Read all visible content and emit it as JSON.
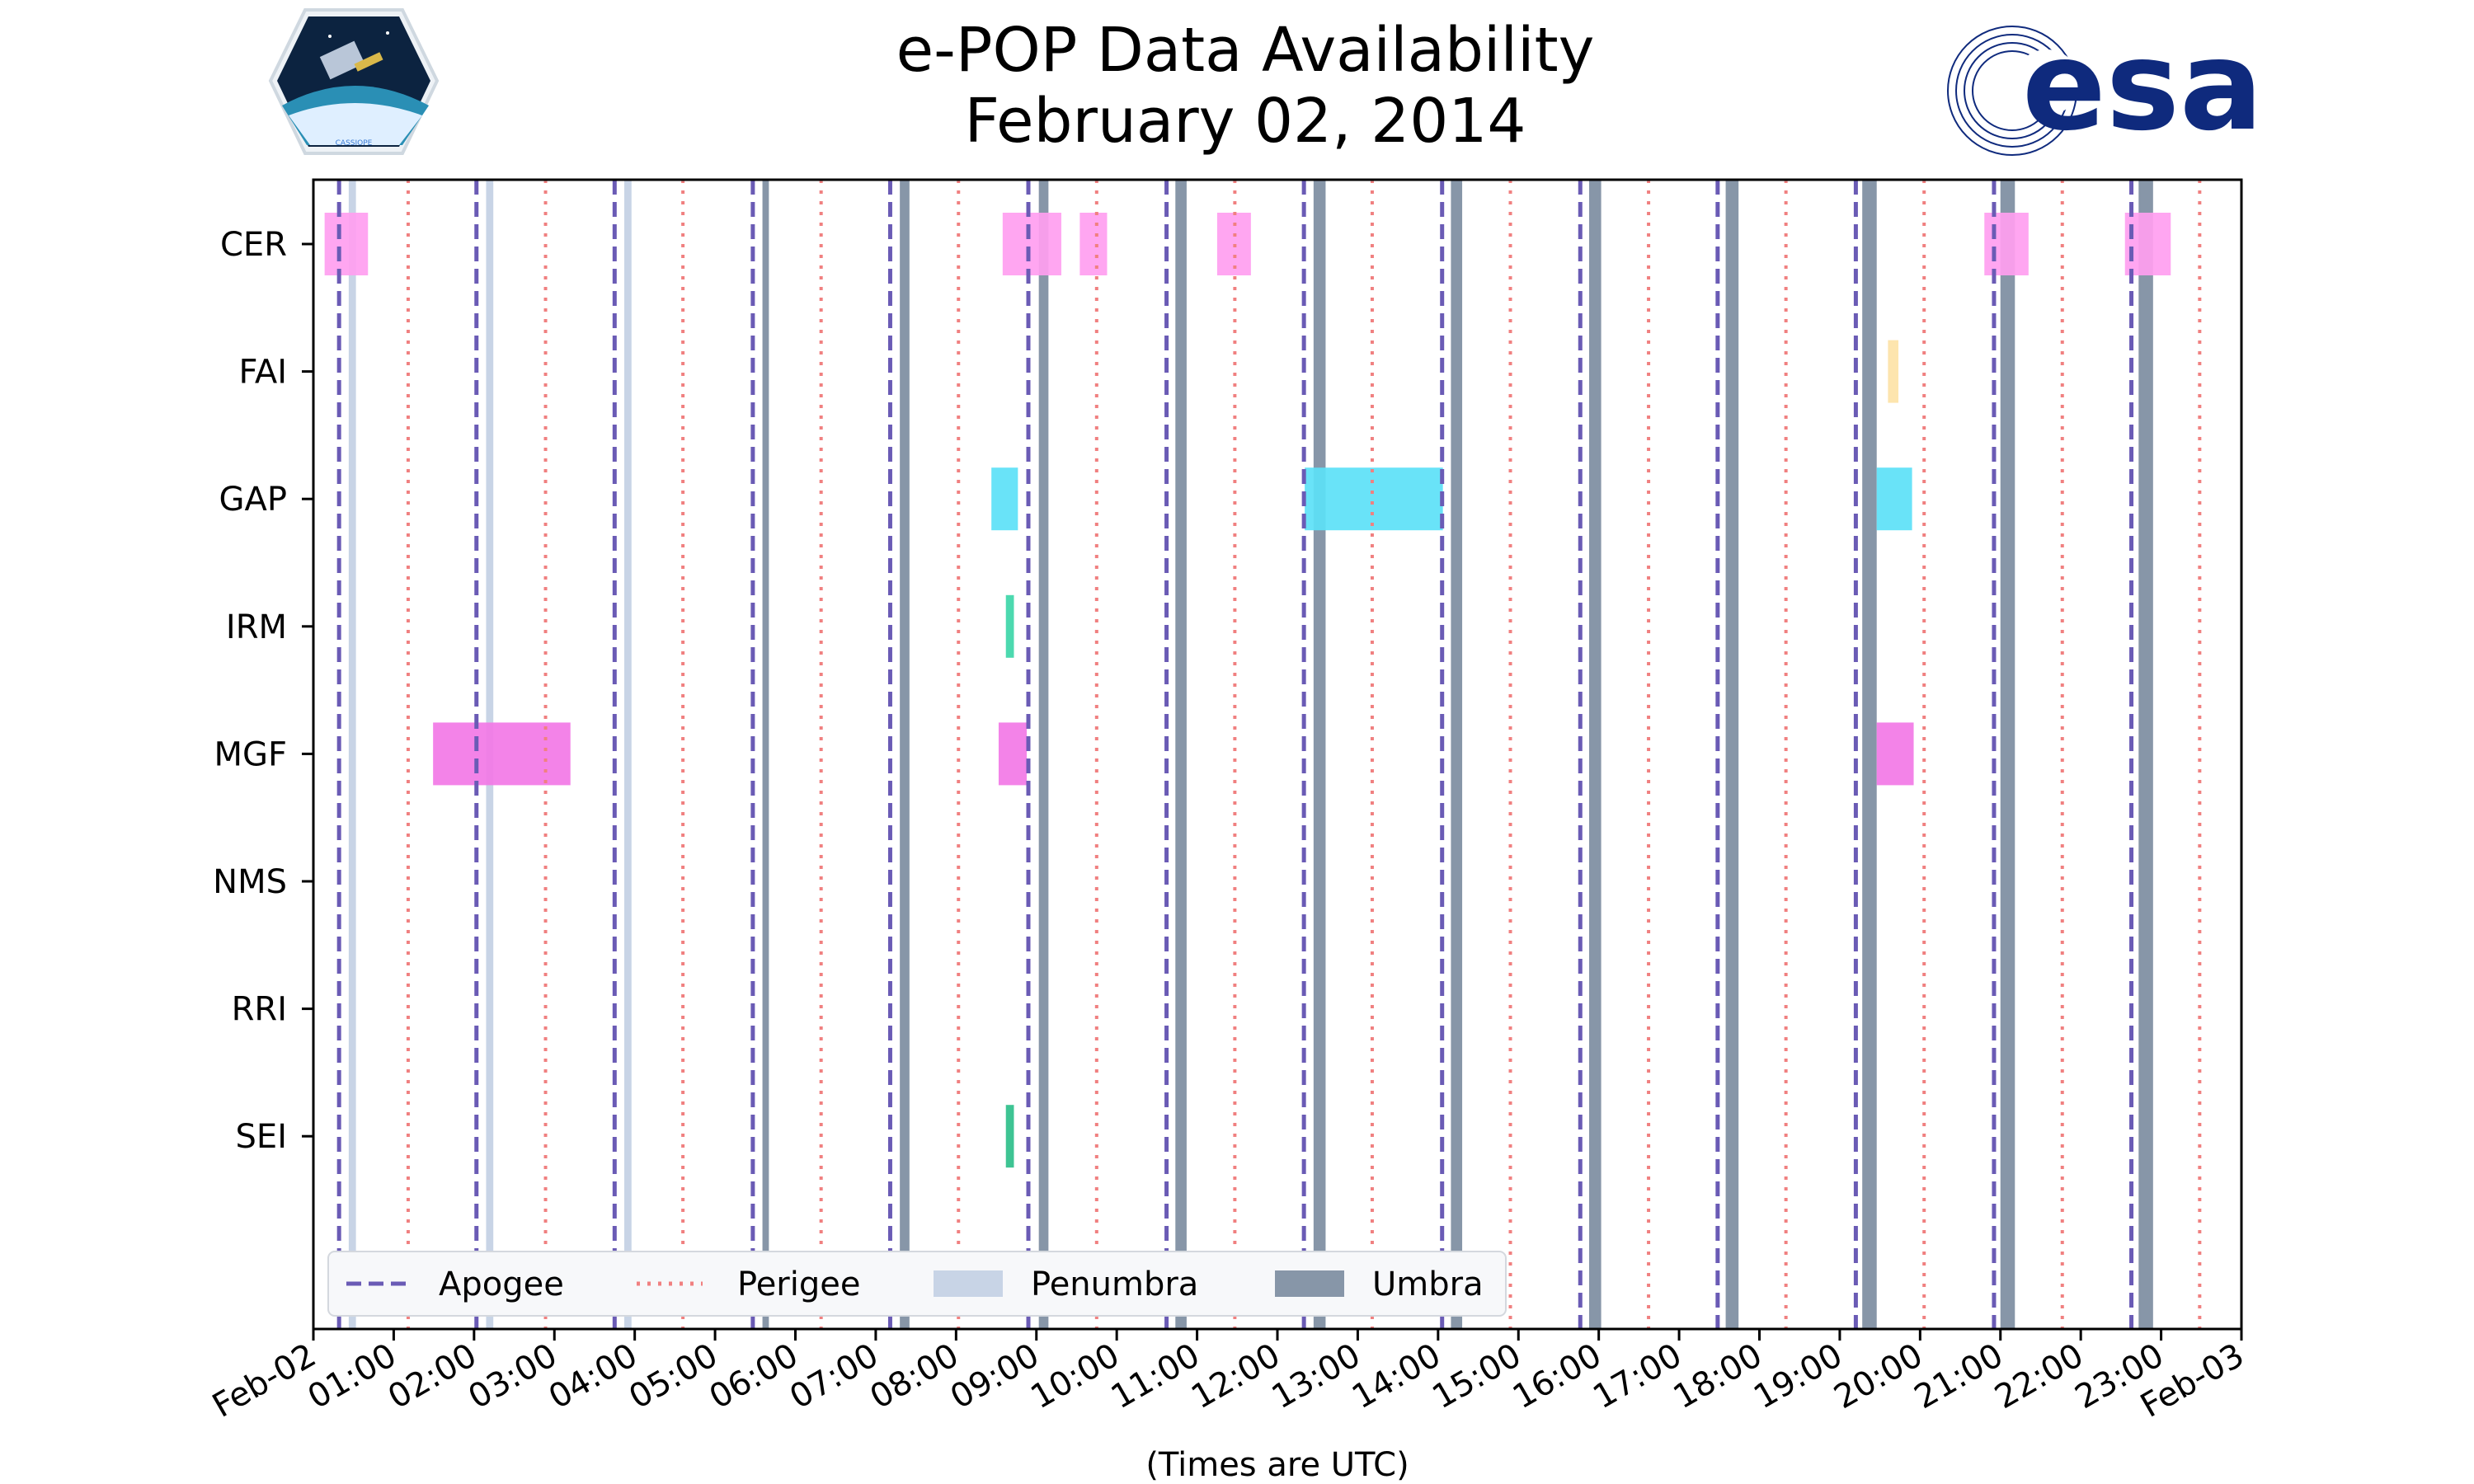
{
  "header": {
    "title_line1": "e-POP Data Availability",
    "title_line2": "February 02, 2014",
    "left_logo_caption": "CASSIOPE",
    "right_logo_text": "esa"
  },
  "colors": {
    "apogee": "#6a5bb5",
    "perigee": "#f08080",
    "penumbra": "#c8d4e6",
    "umbra": "#8796a8",
    "CER": "#ff9ef0",
    "FAI": "#fde3a7",
    "GAP": "#5ce1f7",
    "IRM": "#3dd6a8",
    "MGF": "#f278e6",
    "SEI": "#2ebf8a"
  },
  "chart_data": {
    "type": "timeline",
    "title": "e-POP Data Availability\nFebruary 02, 2014",
    "xlabel": "(Times are UTC)",
    "ylabel": "",
    "xlim_hours": [
      0,
      24
    ],
    "x_tick_labels": [
      "Feb-02",
      "01:00",
      "02:00",
      "03:00",
      "04:00",
      "05:00",
      "06:00",
      "07:00",
      "08:00",
      "09:00",
      "10:00",
      "11:00",
      "12:00",
      "13:00",
      "14:00",
      "15:00",
      "16:00",
      "17:00",
      "18:00",
      "19:00",
      "20:00",
      "21:00",
      "22:00",
      "23:00",
      "Feb-03"
    ],
    "instruments": [
      "CER",
      "FAI",
      "GAP",
      "IRM",
      "MGF",
      "NMS",
      "RRI",
      "SEI"
    ],
    "apogee_hours": [
      0.32,
      2.03,
      3.75,
      5.47,
      7.18,
      8.9,
      10.62,
      12.33,
      14.05,
      15.77,
      17.48,
      19.2,
      20.92,
      22.63
    ],
    "perigee_hours": [
      1.18,
      2.89,
      4.6,
      6.32,
      8.03,
      9.75,
      11.47,
      13.18,
      14.9,
      16.62,
      18.33,
      20.05,
      21.77,
      23.48
    ],
    "penumbra": [
      {
        "start": 0.44,
        "end": 0.53
      },
      {
        "start": 2.15,
        "end": 2.24
      },
      {
        "start": 3.87,
        "end": 3.96
      }
    ],
    "umbra": [
      {
        "start": 5.59,
        "end": 5.67
      },
      {
        "start": 7.3,
        "end": 7.42
      },
      {
        "start": 9.03,
        "end": 9.15
      },
      {
        "start": 10.73,
        "end": 10.87
      },
      {
        "start": 12.45,
        "end": 12.6
      },
      {
        "start": 14.16,
        "end": 14.3
      },
      {
        "start": 15.88,
        "end": 16.03
      },
      {
        "start": 17.58,
        "end": 17.74
      },
      {
        "start": 19.28,
        "end": 19.46
      },
      {
        "start": 21.0,
        "end": 21.18
      },
      {
        "start": 22.72,
        "end": 22.9
      }
    ],
    "data_segments": {
      "CER": [
        {
          "start": 0.14,
          "end": 0.68
        },
        {
          "start": 8.58,
          "end": 9.31
        },
        {
          "start": 9.54,
          "end": 9.88
        },
        {
          "start": 11.25,
          "end": 11.67
        },
        {
          "start": 20.8,
          "end": 21.35
        },
        {
          "start": 22.55,
          "end": 23.12
        }
      ],
      "FAI": [
        {
          "start": 19.6,
          "end": 19.73
        }
      ],
      "GAP": [
        {
          "start": 8.44,
          "end": 8.77
        },
        {
          "start": 12.34,
          "end": 14.06
        },
        {
          "start": 19.46,
          "end": 19.9
        }
      ],
      "IRM": [
        {
          "start": 8.62,
          "end": 8.72
        }
      ],
      "MGF": [
        {
          "start": 1.49,
          "end": 3.2
        },
        {
          "start": 8.53,
          "end": 8.88
        },
        {
          "start": 19.46,
          "end": 19.92
        }
      ],
      "NMS": [],
      "RRI": [],
      "SEI": [
        {
          "start": 8.62,
          "end": 8.72
        }
      ]
    },
    "legend": [
      {
        "label": "Apogee",
        "style": "apogee"
      },
      {
        "label": "Perigee",
        "style": "perigee"
      },
      {
        "label": "Penumbra",
        "style": "penumbra"
      },
      {
        "label": "Umbra",
        "style": "umbra"
      }
    ],
    "legend_position": "lower-left"
  }
}
